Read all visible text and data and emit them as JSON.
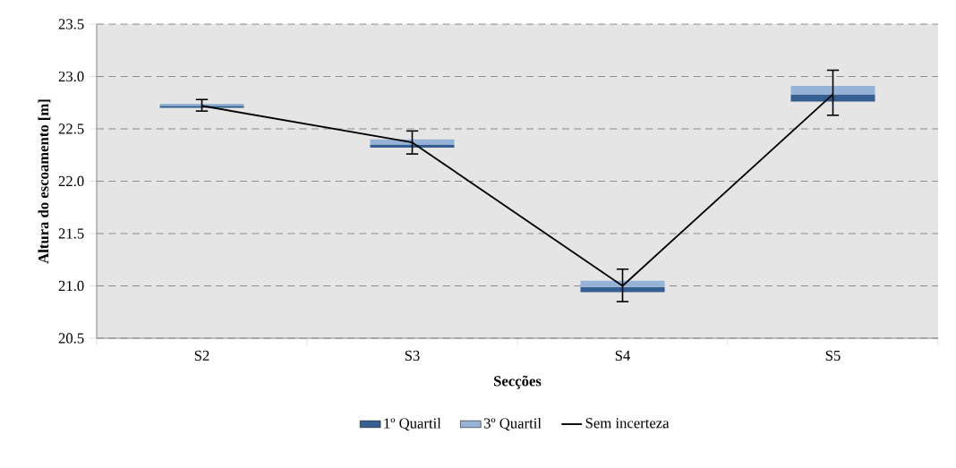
{
  "chart_data": {
    "type": "bar",
    "xlabel": "Secções",
    "ylabel": "Altura do escoamento [m]",
    "categories": [
      "S2",
      "S3",
      "S4",
      "S5"
    ],
    "series": [
      {
        "name": "1º Quartil",
        "color": "#355f91",
        "base": [
          22.7,
          22.32,
          20.94,
          22.76
        ],
        "values": [
          0.02,
          0.03,
          0.05,
          0.07
        ]
      },
      {
        "name": "3º Quartil",
        "color": "#95b3d7",
        "base": [
          22.72,
          22.35,
          20.99,
          22.83
        ],
        "values": [
          0.02,
          0.05,
          0.06,
          0.08
        ]
      },
      {
        "name": "Sem incerteza",
        "type": "line",
        "color": "#000000",
        "values": [
          22.72,
          22.37,
          21.0,
          22.83
        ],
        "errors": [
          [
            22.67,
            22.78
          ],
          [
            22.26,
            22.48
          ],
          [
            20.85,
            21.16
          ],
          [
            22.63,
            23.06
          ]
        ]
      }
    ],
    "ylim": [
      20.5,
      23.5
    ],
    "yticks": [
      20.5,
      {
        "value": 21,
        "label": "21.0"
      },
      21.5,
      {
        "value": 22,
        "label": "22.0"
      },
      22.5,
      {
        "value": 23,
        "label": "23.0"
      },
      23.5
    ],
    "grid": "y",
    "legend": "bottom",
    "marker": "none",
    "line_style": "solid"
  }
}
